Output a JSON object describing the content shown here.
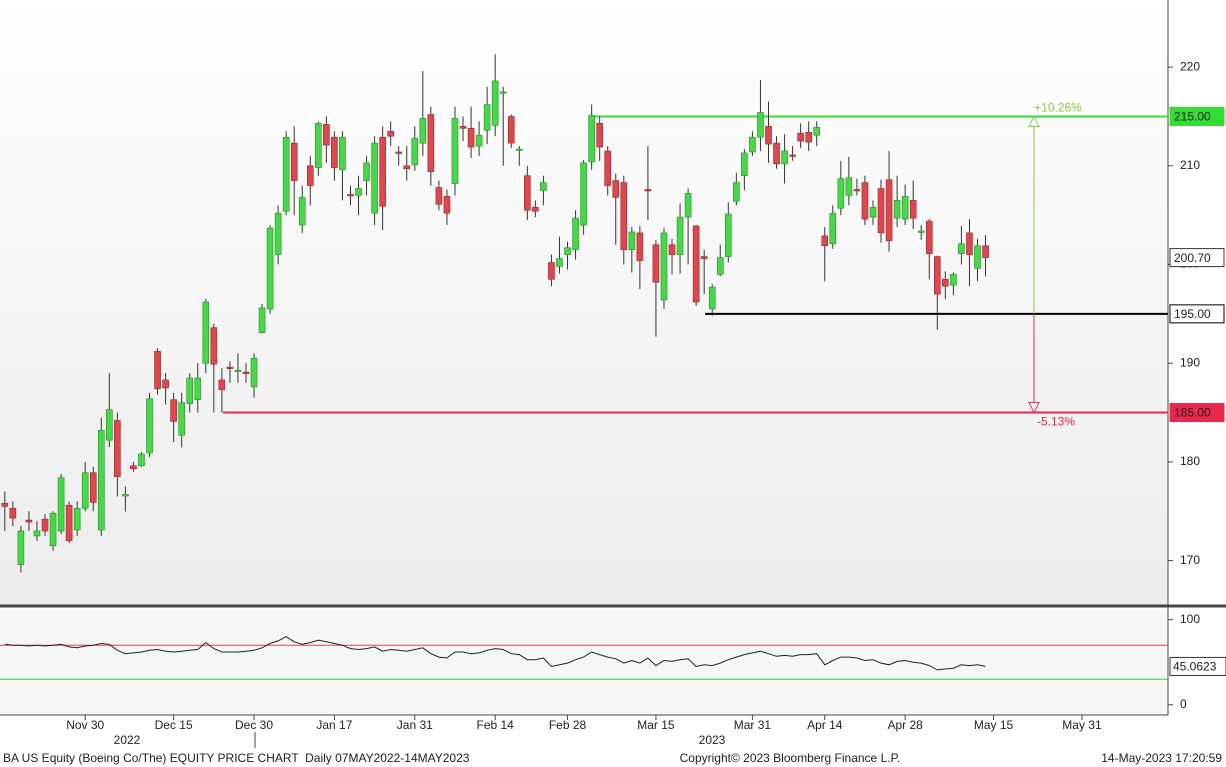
{
  "chart_data": {
    "type": "candlestick",
    "open": [
      175.8,
      175.3,
      169.6,
      174.1,
      172.5,
      174.2,
      171.5,
      173,
      175.6,
      173.1,
      175.3,
      178.9,
      173.1,
      182.2,
      184.2,
      176.6,
      179.6,
      179.6,
      180.9,
      191.2,
      188.3,
      186.3,
      182.7,
      185.9,
      186.3,
      190.0,
      193.6,
      188.3,
      189.6,
      189.2,
      189.1,
      187.6,
      193.1,
      195.5,
      201,
      205.4,
      212.3,
      204,
      210,
      209.8,
      214.2,
      212.9,
      209.6,
      207.1,
      207,
      208.5,
      205.2,
      212.9,
      213.5,
      211.4,
      210,
      210.1,
      212.3,
      215.2,
      207.8,
      206.9,
      208.2,
      214,
      213.8,
      212,
      213.6,
      214.1,
      217.4,
      215,
      211.6,
      209,
      205.8,
      207.5,
      200.2,
      199.8,
      201,
      201.5,
      204,
      210.4,
      214.3,
      211.5,
      208.5,
      208.3,
      201.5,
      203.2,
      207.6,
      202,
      196.4,
      202,
      201,
      204.8,
      203.9,
      200.8,
      195.5,
      199,
      200.8,
      206.4,
      209,
      211.4,
      212.9,
      214,
      212.3,
      210.2,
      211.1,
      213.3,
      213.4,
      213.1,
      202.9,
      202.1,
      205.7,
      207,
      207.6,
      208.3,
      204.8,
      207.7,
      208.6,
      204.7,
      204.6,
      206.5,
      203.3,
      204.4,
      200.8,
      198.5,
      197.9,
      201.1,
      203.2,
      199.6,
      201.9
    ],
    "high": [
      177,
      176,
      173.5,
      175,
      174,
      174.7,
      175,
      178.8,
      176,
      176,
      180,
      179.5,
      184.5,
      189,
      185,
      177.5,
      180,
      181,
      187,
      191.5,
      189,
      187,
      187,
      189,
      190,
      196.5,
      194,
      189.5,
      190.2,
      191,
      190,
      191,
      196,
      204,
      206,
      213.5,
      214,
      208,
      211,
      214.5,
      215,
      213.5,
      213.5,
      208,
      209,
      211,
      213,
      214,
      214.5,
      212,
      212,
      214,
      219.6,
      216,
      208.5,
      207.6,
      216,
      215,
      216,
      214.5,
      218,
      221.3,
      218,
      215.2,
      212,
      210,
      206.5,
      209,
      201,
      202.8,
      202.3,
      205.5,
      210.6,
      216.2,
      215,
      212,
      209.2,
      209,
      203.8,
      203.9,
      212,
      202.5,
      203.7,
      202.6,
      206.2,
      207.7,
      204,
      201.5,
      198,
      202,
      206.3,
      209.3,
      211.7,
      213.5,
      218.7,
      216.5,
      213,
      213.2,
      212,
      214.3,
      214.5,
      214.5,
      203.8,
      206,
      210.5,
      210.9,
      208.7,
      209,
      206.5,
      208.6,
      211.5,
      209,
      208.1,
      208.5,
      204,
      204.6,
      200.9,
      199.3,
      199.2,
      203.9,
      204.6,
      202.6,
      203
    ],
    "low": [
      173,
      173.5,
      168.8,
      173,
      172,
      172.5,
      171,
      172.7,
      171.8,
      172.5,
      175,
      175,
      172.5,
      181.5,
      176.5,
      175,
      179,
      179.5,
      180.5,
      186.8,
      185.8,
      182,
      181.5,
      185,
      185,
      189,
      185,
      185,
      188,
      188,
      188,
      186.5,
      193,
      195,
      200,
      205,
      205,
      203.2,
      206,
      209,
      210.3,
      208.5,
      206.5,
      206,
      205,
      207,
      204,
      203.5,
      212,
      210,
      208.5,
      209.5,
      211,
      208,
      205.5,
      204,
      207,
      212.5,
      210.8,
      211,
      212.2,
      213,
      210,
      211.8,
      210,
      204.5,
      204.8,
      206,
      197.8,
      199.1,
      199.5,
      200.5,
      203,
      209.6,
      210.5,
      207,
      202,
      200,
      199.2,
      197.5,
      204.5,
      192.7,
      195.5,
      199,
      199.1,
      200,
      195.8,
      197,
      194.8,
      198.8,
      200.2,
      206,
      207.5,
      211,
      211.5,
      210.3,
      209.7,
      208.2,
      210.5,
      211.8,
      211.5,
      212,
      198.3,
      201.6,
      205,
      206,
      207,
      204,
      204,
      202.2,
      201.3,
      203.8,
      204,
      203.6,
      202.5,
      198.5,
      193.4,
      196.5,
      196.9,
      200,
      197.8,
      198.3,
      198.8
    ],
    "close": [
      175.5,
      174.3,
      173.0,
      173.9,
      173.0,
      173.0,
      174.8,
      178.4,
      172.0,
      175.3,
      178.9,
      175.9,
      183.2,
      185.3,
      178.5,
      176.7,
      179.3,
      180.8,
      186.4,
      187.4,
      187.5,
      184.1,
      186,
      188.5,
      188.5,
      196.2,
      189.9,
      187.3,
      189.5,
      189.3,
      189.0,
      190.5,
      195.6,
      203.7,
      205.2,
      212.9,
      208.5,
      206.8,
      208,
      214.3,
      212.1,
      209.8,
      212.9,
      207,
      207.7,
      210.3,
      212.3,
      205.9,
      213,
      211.3,
      209.7,
      212.8,
      214.8,
      209.4,
      206.1,
      205.2,
      214.8,
      213.8,
      211.9,
      213.1,
      216.2,
      218.6,
      217.5,
      212.3,
      211.7,
      205.5,
      205.4,
      208.3,
      198.5,
      200.6,
      201.7,
      204.7,
      210.3,
      215.1,
      211.9,
      208,
      206.8,
      201.5,
      203.3,
      200.4,
      207.5,
      198.2,
      203.2,
      201,
      204.8,
      207.2,
      196.2,
      200.6,
      197.7,
      200.7,
      205.1,
      208.3,
      211.3,
      212.9,
      215.4,
      212.2,
      210.2,
      211.5,
      211.0,
      212.5,
      212.4,
      213.9,
      201.9,
      205.2,
      208.7,
      208.8,
      207.5,
      204.6,
      205.8,
      203.2,
      202.4,
      206.5,
      206.9,
      204.7,
      203.4,
      201.1,
      197.0,
      197.8,
      199,
      202.1,
      201,
      201.9,
      200.7
    ],
    "last_label": "200.70",
    "up_color": "#46d846",
    "down_color": "#e0464e",
    "xlim": [
      -0.6,
      144.7
    ],
    "xticks": [
      {
        "value": 10,
        "label": "Nov 30"
      },
      {
        "value": 21,
        "label": "Dec 15"
      },
      {
        "value": 31,
        "label": "Dec 30"
      },
      {
        "value": 41,
        "label": "Jan 17"
      },
      {
        "value": 51,
        "label": "Jan 31"
      },
      {
        "value": 61,
        "label": "Feb 14"
      },
      {
        "value": 70,
        "label": "Feb 28"
      },
      {
        "value": 81,
        "label": "Mar 15"
      },
      {
        "value": 93,
        "label": "Mar 31"
      },
      {
        "value": 102,
        "label": "Apr 14"
      },
      {
        "value": 112,
        "label": "Apr 28"
      },
      {
        "value": 123,
        "label": "May 15"
      },
      {
        "value": 134,
        "label": "May 31"
      }
    ],
    "years": [
      "2022",
      "2023"
    ],
    "ylim": [
      165.5,
      226.8
    ],
    "yticks": [
      170,
      180,
      190,
      200,
      210,
      220
    ],
    "levels": [
      {
        "value": 215,
        "label": "215.00",
        "color": "#33dd33"
      },
      {
        "value": 195,
        "label": "195.00",
        "color": "#000000"
      },
      {
        "value": 185,
        "label": "185.00",
        "color": "#e8284c"
      }
    ],
    "annotations": [
      {
        "text": "+10.26%",
        "color": "#88cc44"
      },
      {
        "text": "-5.13%",
        "color": "#e8284c"
      }
    ],
    "rsi": {
      "values": [
        71,
        70,
        70,
        69,
        70,
        69,
        70,
        71,
        68,
        67,
        69,
        70,
        72,
        71,
        64,
        60,
        61,
        62,
        64,
        65,
        63,
        62,
        63,
        64,
        65,
        73,
        66,
        62,
        62,
        62,
        63,
        64,
        67,
        72,
        75,
        80,
        74,
        71,
        73,
        76,
        74,
        72,
        70,
        66,
        65,
        66,
        68,
        63,
        65,
        64,
        63,
        65,
        67,
        60,
        56,
        55,
        62,
        62,
        60,
        61,
        64,
        66,
        65,
        60,
        59,
        53,
        53,
        55,
        45,
        47,
        49,
        53,
        56,
        62,
        59,
        56,
        54,
        49,
        52,
        49,
        55,
        46,
        52,
        51,
        53,
        54,
        45,
        47,
        46,
        49,
        53,
        56,
        59,
        61,
        63,
        60,
        57,
        58,
        57,
        59,
        59,
        60,
        47,
        52,
        56,
        56,
        55,
        52,
        53,
        49,
        47,
        51,
        52,
        50,
        49,
        46,
        41,
        42,
        43,
        47,
        46,
        47,
        45.06
      ],
      "value_label": "45.0623",
      "ylim": [
        -12,
        109
      ],
      "yticks": [
        0,
        100
      ],
      "bands": [
        {
          "value": 70,
          "color": "#e04848"
        },
        {
          "value": 30,
          "color": "#33cc33"
        }
      ]
    },
    "footer": {
      "left": "BA US Equity (Boeing Co/The) EQUITY PRICE CHART  Daily 07MAY2022-14MAY2023",
      "center": "Copyright© 2023 Bloomberg Finance L.P.",
      "right": "14-May-2023 17:20:59"
    }
  }
}
